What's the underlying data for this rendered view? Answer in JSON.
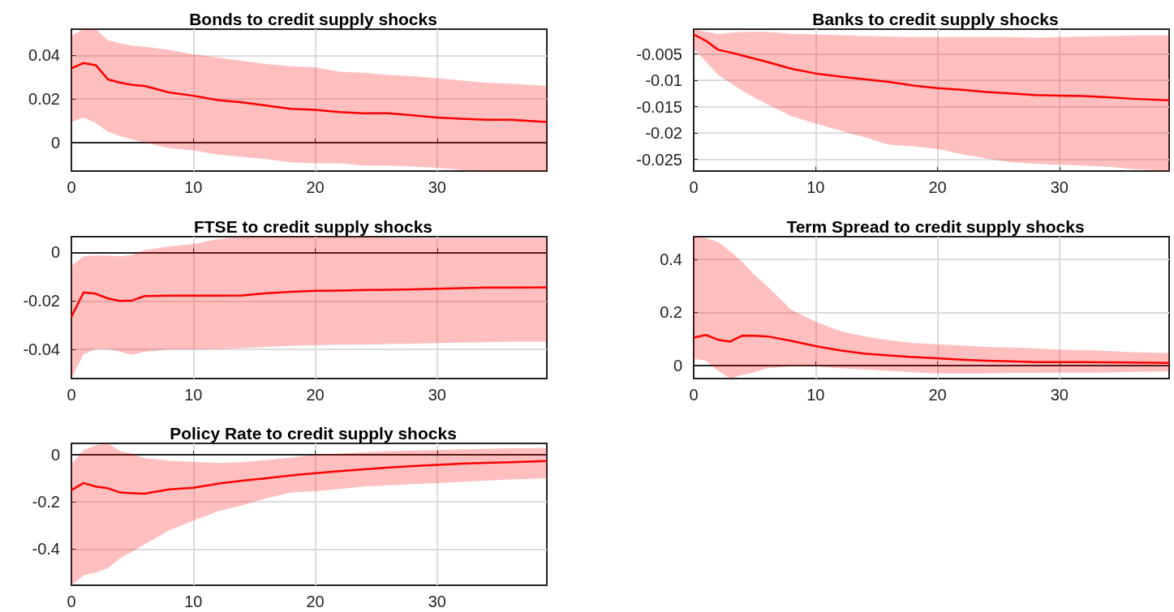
{
  "chart_data": [
    {
      "type": "line",
      "title": "Bonds to credit supply shocks",
      "x": [
        0,
        1,
        2,
        3,
        4,
        5,
        6,
        8,
        10,
        12,
        14,
        16,
        18,
        20,
        22,
        24,
        26,
        28,
        30,
        32,
        34,
        36,
        39
      ],
      "xlim": [
        0,
        39
      ],
      "xticks": [
        0,
        10,
        20,
        30
      ],
      "ylim": [
        -0.013,
        0.052
      ],
      "yticks": [
        0,
        0.02,
        0.04
      ],
      "grid": true,
      "series": [
        {
          "color": "#ff0000",
          "values": [
            0.034,
            0.0365,
            0.0355,
            0.029,
            0.0275,
            0.0265,
            0.026,
            0.023,
            0.0215,
            0.0195,
            0.0185,
            0.017,
            0.0155,
            0.015,
            0.014,
            0.0135,
            0.0135,
            0.0125,
            0.0115,
            0.011,
            0.0105,
            0.0105,
            0.0095
          ],
          "upper": [
            0.049,
            0.052,
            0.052,
            0.047,
            0.0455,
            0.0445,
            0.044,
            0.0425,
            0.0405,
            0.039,
            0.0375,
            0.036,
            0.035,
            0.0345,
            0.0325,
            0.032,
            0.031,
            0.0305,
            0.0295,
            0.0285,
            0.0275,
            0.027,
            0.026
          ],
          "lower": [
            0.0095,
            0.0115,
            0.009,
            0.005,
            0.003,
            0.0015,
            0,
            -0.0025,
            -0.0035,
            -0.0055,
            -0.0065,
            -0.0075,
            -0.009,
            -0.0095,
            -0.0095,
            -0.0105,
            -0.0105,
            -0.011,
            -0.0115,
            -0.0125,
            -0.013,
            -0.013,
            -0.013
          ]
        }
      ]
    },
    {
      "type": "line",
      "title": "Banks to credit supply shocks",
      "x": [
        0,
        1,
        2,
        3,
        4,
        5,
        6,
        8,
        10,
        12,
        14,
        16,
        18,
        20,
        22,
        24,
        26,
        28,
        30,
        32,
        34,
        36,
        39
      ],
      "xlim": [
        0,
        39
      ],
      "xticks": [
        0,
        10,
        20,
        30
      ],
      "ylim": [
        -0.0272,
        -0.0003
      ],
      "yticks": [
        -0.025,
        -0.02,
        -0.015,
        -0.01,
        -0.005
      ],
      "grid": true,
      "series": [
        {
          "color": "#ff0000",
          "values": [
            -0.0013,
            -0.0025,
            -0.0042,
            -0.0047,
            -0.0053,
            -0.0059,
            -0.0065,
            -0.0078,
            -0.0087,
            -0.0093,
            -0.0098,
            -0.0103,
            -0.011,
            -0.0115,
            -0.0118,
            -0.0122,
            -0.0125,
            -0.0128,
            -0.0129,
            -0.013,
            -0.0132,
            -0.0135,
            -0.0138
          ],
          "upper": [
            -0.0003,
            -0.0008,
            -0.0012,
            -0.001,
            -0.0008,
            -0.0008,
            -0.0008,
            -0.0012,
            -0.0013,
            -0.0014,
            -0.0016,
            -0.0017,
            -0.0018,
            -0.0018,
            -0.0018,
            -0.0018,
            -0.0018,
            -0.0019,
            -0.0018,
            -0.0017,
            -0.0016,
            -0.0015,
            -0.0015
          ],
          "lower": [
            -0.004,
            -0.0065,
            -0.009,
            -0.0105,
            -0.012,
            -0.0133,
            -0.0145,
            -0.0168,
            -0.0182,
            -0.0195,
            -0.0208,
            -0.0222,
            -0.0225,
            -0.023,
            -0.024,
            -0.0248,
            -0.0255,
            -0.0258,
            -0.026,
            -0.0262,
            -0.0264,
            -0.0268,
            -0.0272
          ]
        }
      ]
    },
    {
      "type": "line",
      "title": "FTSE to credit supply shocks",
      "x": [
        0,
        1,
        2,
        3,
        4,
        5,
        6,
        8,
        10,
        12,
        14,
        16,
        18,
        20,
        22,
        24,
        26,
        28,
        30,
        32,
        34,
        36,
        39
      ],
      "xlim": [
        0,
        39
      ],
      "xticks": [
        0,
        10,
        20,
        30
      ],
      "ylim": [
        -0.052,
        0.0065
      ],
      "yticks": [
        -0.04,
        -0.02,
        0
      ],
      "grid": true,
      "series": [
        {
          "color": "#ff0000",
          "values": [
            -0.0265,
            -0.0165,
            -0.017,
            -0.019,
            -0.02,
            -0.0198,
            -0.018,
            -0.0178,
            -0.0178,
            -0.0178,
            -0.0177,
            -0.0168,
            -0.0162,
            -0.0158,
            -0.0157,
            -0.0155,
            -0.0154,
            -0.0152,
            -0.015,
            -0.0147,
            -0.0145,
            -0.0145,
            -0.0144
          ],
          "upper": [
            -0.0055,
            -0.0015,
            -0.0013,
            -0.0013,
            -0.0015,
            -0.001,
            0.001,
            0.0025,
            0.0035,
            0.0055,
            0.0065,
            0.0065,
            0.0065,
            0.0065,
            0.0065,
            0.0065,
            0.006,
            0.006,
            0.006,
            0.006,
            0.006,
            0.006,
            0.006
          ],
          "lower": [
            -0.052,
            -0.042,
            -0.0398,
            -0.0398,
            -0.041,
            -0.0422,
            -0.041,
            -0.04,
            -0.04,
            -0.0398,
            -0.0395,
            -0.039,
            -0.0385,
            -0.0383,
            -0.038,
            -0.038,
            -0.0378,
            -0.0376,
            -0.0374,
            -0.0372,
            -0.037,
            -0.0368,
            -0.0368
          ]
        }
      ]
    },
    {
      "type": "line",
      "title": "Term Spread to credit supply shocks",
      "x": [
        0,
        1,
        2,
        3,
        4,
        5,
        6,
        8,
        10,
        12,
        14,
        16,
        18,
        20,
        22,
        24,
        26,
        28,
        30,
        32,
        34,
        36,
        39
      ],
      "xlim": [
        0,
        39
      ],
      "xticks": [
        0,
        10,
        20,
        30
      ],
      "ylim": [
        -0.049,
        0.485
      ],
      "yticks": [
        0,
        0.2,
        0.4
      ],
      "grid": true,
      "series": [
        {
          "color": "#ff0000",
          "values": [
            0.105,
            0.115,
            0.097,
            0.09,
            0.113,
            0.112,
            0.11,
            0.093,
            0.073,
            0.057,
            0.045,
            0.038,
            0.032,
            0.027,
            0.022,
            0.018,
            0.016,
            0.013,
            0.013,
            0.013,
            0.012,
            0.011,
            0.01
          ],
          "upper": [
            0.485,
            0.48,
            0.465,
            0.43,
            0.39,
            0.34,
            0.3,
            0.21,
            0.165,
            0.13,
            0.11,
            0.095,
            0.085,
            0.08,
            0.075,
            0.07,
            0.068,
            0.065,
            0.06,
            0.058,
            0.055,
            0.05,
            0.047
          ],
          "lower": [
            0.025,
            0.018,
            -0.02,
            -0.049,
            -0.035,
            -0.025,
            -0.01,
            -0.003,
            -0.003,
            -0.01,
            -0.015,
            -0.02,
            -0.025,
            -0.03,
            -0.03,
            -0.03,
            -0.028,
            -0.028,
            -0.027,
            -0.027,
            -0.026,
            -0.024,
            -0.022
          ]
        }
      ]
    },
    {
      "type": "line",
      "title": "Policy Rate to credit supply shocks",
      "x": [
        0,
        1,
        2,
        3,
        4,
        5,
        6,
        8,
        10,
        12,
        14,
        16,
        18,
        20,
        22,
        24,
        26,
        28,
        30,
        32,
        34,
        36,
        39
      ],
      "xlim": [
        0,
        39
      ],
      "xticks": [
        0,
        10,
        20,
        30
      ],
      "ylim": [
        -0.553,
        0.048
      ],
      "yticks": [
        -0.4,
        -0.2,
        0
      ],
      "grid": true,
      "series": [
        {
          "color": "#ff0000",
          "values": [
            -0.15,
            -0.12,
            -0.135,
            -0.142,
            -0.16,
            -0.163,
            -0.165,
            -0.147,
            -0.14,
            -0.123,
            -0.11,
            -0.1,
            -0.088,
            -0.078,
            -0.07,
            -0.062,
            -0.054,
            -0.048,
            -0.043,
            -0.038,
            -0.034,
            -0.032,
            -0.027
          ],
          "upper": [
            -0.04,
            0.02,
            0.04,
            0.048,
            0.015,
            0.005,
            -0.015,
            -0.025,
            -0.03,
            -0.035,
            -0.032,
            -0.022,
            -0.012,
            0,
            0.005,
            0.01,
            0.015,
            0.018,
            0.02,
            0.023,
            0.025,
            0.027,
            0.028
          ],
          "lower": [
            -0.553,
            -0.51,
            -0.5,
            -0.48,
            -0.44,
            -0.41,
            -0.38,
            -0.32,
            -0.28,
            -0.24,
            -0.215,
            -0.185,
            -0.16,
            -0.155,
            -0.145,
            -0.135,
            -0.13,
            -0.125,
            -0.12,
            -0.115,
            -0.11,
            -0.105,
            -0.1
          ]
        }
      ]
    }
  ]
}
